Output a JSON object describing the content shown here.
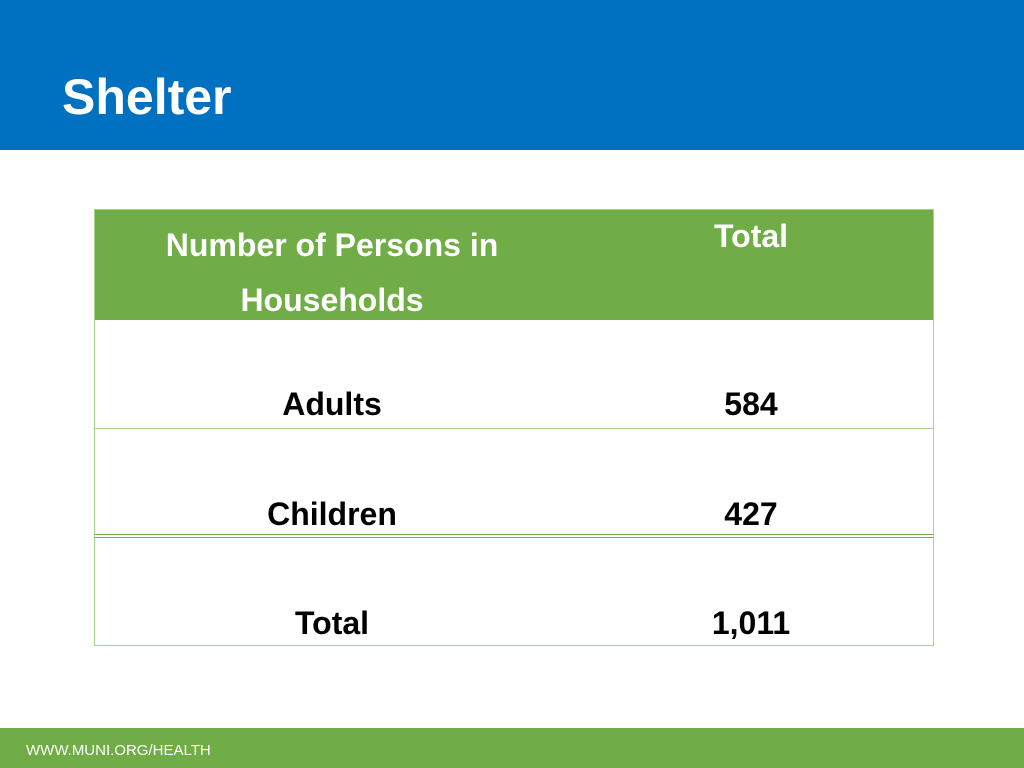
{
  "slide": {
    "title": "Shelter"
  },
  "table": {
    "headers": {
      "persons": "Number of Persons in Households",
      "total": "Total"
    },
    "rows": [
      {
        "label": "Adults",
        "value": "584"
      },
      {
        "label": "Children",
        "value": "427"
      },
      {
        "label": "Total",
        "value": "1,011"
      }
    ]
  },
  "footer": {
    "url": "WWW.MUNI.ORG/HEALTH"
  },
  "colors": {
    "header_blue": "#0070c0",
    "accent_green": "#70ad47",
    "border_light_green": "#a9d18e"
  }
}
